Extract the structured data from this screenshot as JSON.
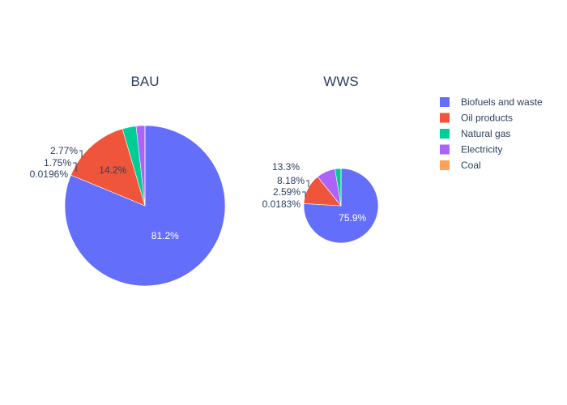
{
  "chart_data": {
    "type": "pie",
    "legend_position": "right",
    "legend": [
      {
        "name": "Biofuels and waste",
        "color": "#636efa"
      },
      {
        "name": "Oil products",
        "color": "#EF553B"
      },
      {
        "name": "Natural gas",
        "color": "#00cc96"
      },
      {
        "name": "Electricity",
        "color": "#ab63fa"
      },
      {
        "name": "Coal",
        "color": "#FFA15A"
      }
    ],
    "pies": [
      {
        "title": "BAU",
        "slices": [
          {
            "name": "Biofuels and waste",
            "value": 81.2,
            "label": "81.2%",
            "color": "#636efa"
          },
          {
            "name": "Oil products",
            "value": 14.2,
            "label": "14.2%",
            "color": "#EF553B"
          },
          {
            "name": "Natural gas",
            "value": 2.77,
            "label": "2.77%",
            "color": "#00cc96"
          },
          {
            "name": "Electricity",
            "value": 1.75,
            "label": "1.75%",
            "color": "#ab63fa"
          },
          {
            "name": "Coal",
            "value": 0.0196,
            "label": "0.0196%",
            "color": "#FFA15A"
          }
        ]
      },
      {
        "title": "WWS",
        "slices": [
          {
            "name": "Biofuels and waste",
            "value": 75.9,
            "label": "75.9%",
            "color": "#636efa"
          },
          {
            "name": "Oil products",
            "value": 13.3,
            "label": "13.3%",
            "color": "#EF553B"
          },
          {
            "name": "Electricity",
            "value": 8.18,
            "label": "8.18%",
            "color": "#ab63fa"
          },
          {
            "name": "Natural gas",
            "value": 2.59,
            "label": "2.59%",
            "color": "#00cc96"
          },
          {
            "name": "Coal",
            "value": 0.0183,
            "label": "0.0183%",
            "color": "#FFA15A"
          }
        ]
      }
    ]
  }
}
